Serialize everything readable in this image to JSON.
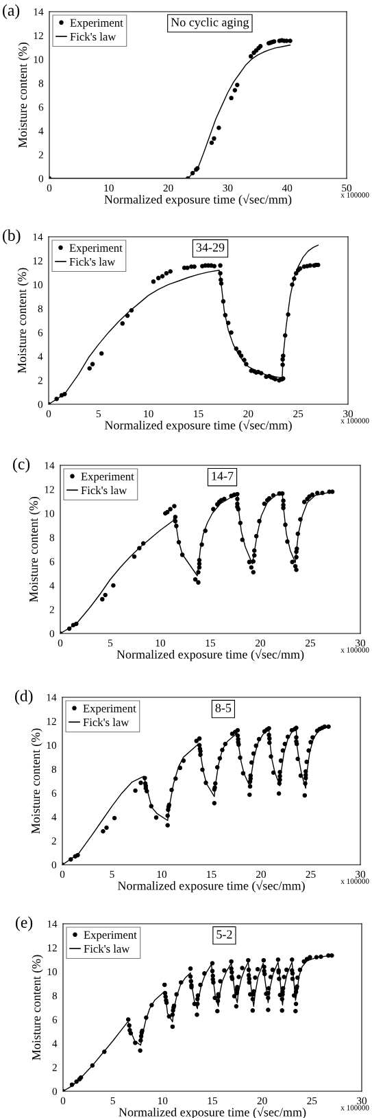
{
  "chart_data": [
    {
      "type": "scatter",
      "title": "(a)",
      "xlabel": "Normalized exposure time (√sec/mm)",
      "ylabel": "Moisture content (%)",
      "annotations": [
        "No cyclic aging",
        "x 100000"
      ],
      "xlim": [
        0,
        50
      ],
      "xticks": [
        0,
        10,
        20,
        30,
        40,
        50
      ],
      "ylim": [
        0,
        14
      ],
      "yticks": [
        0,
        2,
        4,
        6,
        8,
        10,
        12,
        14
      ],
      "grid": false,
      "legend": "top left",
      "series": [
        {
          "name": "Experiment",
          "marker": "circle",
          "color": "#000000",
          "x": [
            0,
            23.3,
            24.1,
            24.7,
            24.9,
            27.3,
            27.7,
            28.5,
            30.6,
            31.2,
            31.6,
            33.9,
            34.4,
            34.8,
            35.2,
            35.5,
            36.9,
            37.2,
            37.5,
            37.8,
            38.7,
            39.1,
            39.5,
            39.9,
            40.5
          ],
          "values": [
            0,
            0,
            0.45,
            0.75,
            0.85,
            3.0,
            3.35,
            4.25,
            6.75,
            7.4,
            7.85,
            10.25,
            10.55,
            10.75,
            10.95,
            11.1,
            11.35,
            11.4,
            11.45,
            11.5,
            11.55,
            11.6,
            11.55,
            11.55,
            11.55
          ]
        },
        {
          "name": "Fick's law",
          "type": "line",
          "marker": "none",
          "color": "#000000",
          "x": [
            0,
            23.3,
            25,
            26,
            27,
            28,
            29,
            30,
            31,
            32,
            33,
            34,
            35,
            36,
            37,
            38,
            39,
            40.5
          ],
          "values": [
            0,
            0,
            0.9,
            2.2,
            3.6,
            5.0,
            6.1,
            7.2,
            8.1,
            8.8,
            9.5,
            10.0,
            10.35,
            10.6,
            10.8,
            10.95,
            11.05,
            11.2
          ]
        }
      ]
    },
    {
      "type": "scatter",
      "title": "(b)",
      "xlabel": "Normalized exposure time (√sec/mm)",
      "ylabel": "Moisture content (%)",
      "annotations": [
        "34-29",
        "x 100000"
      ],
      "xlim": [
        0,
        30
      ],
      "xticks": [
        0,
        5,
        10,
        15,
        20,
        25,
        30
      ],
      "ylim": [
        0,
        14
      ],
      "yticks": [
        0,
        2,
        4,
        6,
        8,
        10,
        12,
        14
      ],
      "grid": false,
      "legend": "top left",
      "series": [
        {
          "name": "Experiment",
          "marker": "circle",
          "color": "#000000",
          "x": [
            0,
            0.8,
            1.3,
            1.6,
            4.1,
            4.4,
            5.3,
            7.4,
            7.9,
            8.3,
            10.5,
            11.0,
            11.4,
            11.8,
            12.2,
            13.6,
            13.9,
            14.3,
            14.6,
            15.4,
            15.7,
            16.0,
            16.3,
            16.6,
            17.2,
            17.2,
            17.25,
            17.3,
            17.5,
            17.7,
            18.0,
            18.3,
            18.8,
            19.1,
            19.3,
            19.6,
            19.8,
            20.3,
            20.6,
            20.8,
            21.0,
            21.3,
            21.8,
            22.1,
            22.3,
            22.5,
            22.7,
            23.1,
            23.3,
            23.4,
            23.5,
            23.45,
            23.45,
            23.5,
            23.7,
            24.0,
            24.4,
            24.6,
            24.8,
            25.0,
            25.2,
            25.6,
            25.9,
            26.2,
            26.6,
            26.8,
            27.0
          ],
          "values": [
            0,
            0.45,
            0.75,
            0.85,
            3.0,
            3.35,
            4.25,
            6.75,
            7.4,
            7.85,
            10.25,
            10.55,
            10.7,
            10.95,
            11.1,
            11.4,
            11.4,
            11.5,
            11.5,
            11.55,
            11.6,
            11.6,
            11.6,
            11.55,
            11.6,
            10.95,
            10.4,
            10.1,
            8.6,
            7.45,
            6.8,
            6.0,
            4.65,
            4.35,
            4.05,
            3.7,
            3.35,
            2.8,
            2.75,
            2.65,
            2.7,
            2.6,
            2.3,
            2.35,
            2.25,
            2.2,
            2.1,
            2.0,
            2.1,
            2.1,
            2.15,
            3.3,
            3.75,
            4.05,
            5.75,
            7.5,
            10.0,
            10.5,
            10.95,
            11.2,
            11.35,
            11.5,
            11.55,
            11.6,
            11.6,
            11.65,
            11.65
          ]
        },
        {
          "name": "Fick's law",
          "type": "line",
          "marker": "none",
          "color": "#000000",
          "x": [
            0,
            1.6,
            3,
            4,
            5,
            6,
            7,
            8,
            9,
            10,
            11,
            12,
            13,
            14,
            15,
            16,
            17.1,
            17.3,
            17.6,
            18,
            18.5,
            19,
            19.5,
            20,
            21,
            22,
            23.4,
            23.5,
            23.8,
            24.2,
            24.6,
            25,
            25.5,
            26,
            26.5,
            27
          ],
          "values": [
            0,
            0.85,
            2.5,
            3.9,
            5.0,
            6.0,
            6.9,
            7.7,
            8.4,
            9.1,
            9.6,
            10.0,
            10.3,
            10.6,
            10.85,
            11.05,
            11.2,
            10.0,
            7.8,
            6.2,
            5.0,
            4.2,
            3.6,
            3.15,
            2.7,
            2.4,
            2.2,
            4.0,
            6.5,
            9.0,
            10.6,
            11.5,
            12.3,
            12.8,
            13.1,
            13.3
          ]
        }
      ]
    },
    {
      "type": "scatter",
      "title": "(c)",
      "xlabel": "Normalized exposure time (√sec/mm)",
      "ylabel": "Moisture content (%)",
      "annotations": [
        "14-7",
        "x 100000"
      ],
      "xlim": [
        0,
        30
      ],
      "xticks": [
        0,
        5,
        10,
        15,
        20,
        25,
        30
      ],
      "ylim": [
        0,
        14
      ],
      "yticks": [
        0,
        2,
        4,
        6,
        8,
        10,
        12,
        14
      ],
      "grid": false,
      "legend": "top left",
      "series": [
        {
          "name": "Experiment",
          "marker": "circle",
          "color": "#000000",
          "x": [
            0,
            0.9,
            1.3,
            1.6,
            4.2,
            4.5,
            5.3,
            7.4,
            7.9,
            8.3,
            10.5,
            10.7,
            11.0,
            11.4,
            11.5,
            11.5,
            11.6,
            11.85,
            12.2,
            13.5,
            13.8,
            13.8,
            13.9,
            13.9,
            13.9,
            14.15,
            14.5,
            15.3,
            15.7,
            15.9,
            16.1,
            16.4,
            17.1,
            17.4,
            17.7,
            17.7,
            17.7,
            17.7,
            17.8,
            18.0,
            18.2,
            18.9,
            19.1,
            19.3,
            19.3,
            19.4,
            19.4,
            19.6,
            19.9,
            20.4,
            20.7,
            20.9,
            21.3,
            21.9,
            22.2,
            22.3,
            22.3,
            22.3,
            22.5,
            22.7,
            23.2,
            23.5,
            23.6,
            23.6,
            23.6,
            23.65,
            23.75,
            24.0,
            24.4,
            24.7,
            24.9,
            25.2,
            25.7,
            26.2,
            26.9,
            27.2
          ],
          "values": [
            0,
            0.4,
            0.7,
            0.8,
            2.85,
            3.2,
            4.0,
            6.4,
            7.1,
            7.5,
            10.0,
            10.1,
            10.35,
            10.6,
            9.7,
            9.35,
            8.95,
            7.6,
            6.55,
            4.5,
            4.25,
            5.1,
            5.5,
            5.8,
            6.1,
            7.4,
            8.55,
            10.35,
            10.75,
            10.95,
            11.1,
            11.2,
            11.45,
            11.55,
            11.6,
            11.2,
            10.8,
            10.55,
            10.35,
            9.2,
            7.8,
            5.95,
            5.5,
            5.1,
            6.0,
            6.5,
            6.9,
            8.1,
            9.35,
            10.8,
            11.1,
            11.25,
            11.5,
            11.65,
            11.65,
            11.05,
            10.7,
            10.45,
            9.05,
            7.65,
            5.95,
            5.6,
            5.3,
            6.35,
            6.8,
            7.05,
            8.3,
            9.5,
            10.95,
            11.2,
            11.4,
            11.55,
            11.7,
            11.7,
            11.8,
            11.8
          ]
        },
        {
          "name": "Fick's law",
          "type": "line",
          "marker": "none",
          "color": "#000000",
          "x": [
            0,
            1.6,
            3,
            4,
            5,
            6,
            7,
            8,
            9,
            10,
            11.3,
            11.4,
            11.6,
            11.8,
            12.2,
            13.7,
            13.8,
            14.0,
            14.3,
            14.7,
            15.2,
            16,
            17,
            17.7,
            17.8,
            18.1,
            18.5,
            19.2,
            19.4,
            19.7,
            20.1,
            20.7,
            21.5,
            22.2,
            22.3,
            22.6,
            23.0,
            23.5,
            23.6,
            23.8,
            24.2,
            24.7,
            25.5,
            27.2
          ],
          "values": [
            0,
            0.8,
            2.2,
            3.3,
            4.5,
            5.5,
            6.4,
            7.2,
            7.9,
            8.6,
            9.4,
            9.8,
            8.9,
            7.8,
            6.6,
            4.8,
            5.5,
            7.0,
            8.3,
            9.2,
            10.0,
            10.8,
            11.3,
            11.5,
            10.5,
            8.5,
            7.2,
            5.8,
            6.8,
            8.3,
            9.8,
            10.9,
            11.5,
            11.6,
            10.6,
            8.3,
            6.9,
            5.9,
            6.8,
            8.3,
            9.8,
            10.9,
            11.5,
            11.8
          ]
        }
      ]
    },
    {
      "type": "scatter",
      "title": "(d)",
      "xlabel": "Normalized exposure time (√sec/mm)",
      "ylabel": "Moisture content (%)",
      "annotations": [
        "8-5",
        "x 100000"
      ],
      "xlim": [
        0,
        30
      ],
      "xticks": [
        0,
        5,
        10,
        15,
        20,
        25,
        30
      ],
      "ylim": [
        0,
        14
      ],
      "yticks": [
        0,
        2,
        4,
        6,
        8,
        10,
        12,
        14
      ],
      "grid": false,
      "legend": "top left",
      "series": [
        {
          "name": "Experiment",
          "marker": "circle",
          "color": "#000000",
          "x": [
            0,
            0.85,
            1.3,
            1.55,
            4.1,
            4.45,
            5.25,
            7.35,
            7.9,
            8.3,
            8.35,
            8.4,
            8.4,
            8.5,
            8.95,
            9.45,
            10.6,
            10.6,
            10.65,
            10.7,
            10.75,
            11.0,
            11.4,
            11.85,
            12.2,
            13.5,
            13.8,
            13.8,
            13.85,
            13.9,
            13.9,
            14.1,
            14.45,
            15.3,
            15.3,
            15.35,
            15.4,
            15.6,
            15.85,
            16.1,
            16.4,
            17.1,
            17.4,
            17.65,
            17.65,
            17.7,
            17.7,
            17.75,
            17.9,
            18.2,
            18.85,
            18.9,
            18.9,
            18.95,
            18.95,
            19.05,
            19.25,
            19.5,
            19.8,
            20.35,
            20.6,
            20.8,
            20.8,
            20.85,
            20.85,
            21.0,
            21.25,
            21.8,
            21.85,
            21.9,
            21.9,
            21.9,
            22.0,
            22.2,
            22.4,
            22.7,
            23.1,
            23.4,
            23.55,
            23.55,
            23.55,
            23.6,
            23.7,
            24.0,
            24.4,
            24.45,
            24.5,
            24.5,
            24.5,
            24.6,
            24.8,
            25.0,
            25.2,
            25.65,
            25.9,
            26.15,
            26.4,
            26.8
          ],
          "values": [
            0,
            0.45,
            0.7,
            0.8,
            2.8,
            3.1,
            3.9,
            6.2,
            6.85,
            7.25,
            6.8,
            6.6,
            6.4,
            6.15,
            4.9,
            3.95,
            3.3,
            4.1,
            4.6,
            4.85,
            5.0,
            6.25,
            7.2,
            8.1,
            8.7,
            10.35,
            10.55,
            10.0,
            9.7,
            9.5,
            9.2,
            7.95,
            6.85,
            5.15,
            6.3,
            6.45,
            6.8,
            8.15,
            8.9,
            9.6,
            10.1,
            10.95,
            11.1,
            11.25,
            10.8,
            10.5,
            10.25,
            10.05,
            8.95,
            7.65,
            5.85,
            6.55,
            6.95,
            7.2,
            7.45,
            8.55,
            9.3,
            9.95,
            10.5,
            11.15,
            11.3,
            11.4,
            10.85,
            10.55,
            10.2,
            9.05,
            7.7,
            5.95,
            6.8,
            7.1,
            7.4,
            7.75,
            8.7,
            9.55,
            10.1,
            10.7,
            11.25,
            11.35,
            11.45,
            10.65,
            10.3,
            10.1,
            8.85,
            7.45,
            5.8,
            6.8,
            7.25,
            7.5,
            7.8,
            8.6,
            9.55,
            10.25,
            10.65,
            11.2,
            11.35,
            11.45,
            11.55,
            11.55
          ]
        },
        {
          "name": "Fick's law",
          "type": "line",
          "marker": "none",
          "color": "#000000",
          "x": [
            0,
            1.6,
            3,
            4,
            5,
            6,
            7,
            8.2,
            8.5,
            9,
            9.5,
            10.6,
            10.8,
            11.2,
            11.7,
            12.2,
            13.7,
            13.9,
            14.2,
            14.5,
            15.3,
            15.4,
            15.7,
            16.1,
            16.6,
            17.6,
            17.7,
            18.0,
            18.3,
            18.9,
            19.0,
            19.3,
            19.7,
            20.2,
            20.8,
            20.9,
            21.1,
            21.4,
            21.9,
            22.0,
            22.3,
            22.7,
            23.1,
            23.55,
            23.6,
            23.8,
            24.1,
            24.5,
            24.6,
            24.9,
            25.3,
            25.8,
            26.8
          ],
          "values": [
            0,
            0.9,
            2.5,
            3.7,
            4.9,
            6.0,
            6.9,
            7.4,
            6.4,
            4.8,
            4.3,
            3.7,
            5.0,
            6.8,
            8.2,
            9.0,
            10.1,
            9.3,
            7.8,
            6.8,
            5.7,
            6.6,
            8.3,
            9.6,
            10.3,
            11.0,
            10.2,
            8.6,
            7.6,
            6.5,
            7.4,
            9.0,
            10.2,
            10.9,
            11.3,
            10.2,
            8.8,
            7.7,
            6.6,
            7.6,
            9.3,
            10.5,
            11.1,
            11.3,
            10.1,
            8.9,
            7.5,
            6.4,
            7.6,
            9.4,
            10.6,
            11.2,
            11.55
          ]
        }
      ]
    },
    {
      "type": "scatter",
      "title": "(e)",
      "xlabel": "Normalized exposure time (√sec/mm)",
      "ylabel": "Moisture content (%)",
      "annotations": [
        "5-2",
        "x 100000"
      ],
      "xlim": [
        0,
        30
      ],
      "xticks": [
        0,
        5,
        10,
        15,
        20,
        25,
        30
      ],
      "ylim": [
        0,
        14
      ],
      "yticks": [
        0,
        2,
        4,
        6,
        8,
        10,
        12,
        14
      ],
      "grid": false,
      "legend": "top left",
      "series": [
        {
          "name": "Experiment",
          "marker": "circle",
          "color": "#000000",
          "x": [
            0,
            0.9,
            1.35,
            1.65,
            1.8,
            2.95,
            4.15,
            6.55,
            6.65,
            6.7,
            6.8,
            7.25,
            7.75,
            7.8,
            7.85,
            7.9,
            7.95,
            8.35,
            8.9,
            10.2,
            10.25,
            10.3,
            10.35,
            10.4,
            10.65,
            11.0,
            11.0,
            11.05,
            11.1,
            11.15,
            11.4,
            11.85,
            12.8,
            12.8,
            12.85,
            12.9,
            12.9,
            13.2,
            13.45,
            13.5,
            13.5,
            13.55,
            13.8,
            14.2,
            15.0,
            15.0,
            15.05,
            15.05,
            15.1,
            15.25,
            15.5,
            15.55,
            15.6,
            15.6,
            15.8,
            16.2,
            16.9,
            16.9,
            16.95,
            16.95,
            17.0,
            17.2,
            17.4,
            17.45,
            17.45,
            17.5,
            17.65,
            18.0,
            18.6,
            18.65,
            18.65,
            18.7,
            18.7,
            18.8,
            19.05,
            19.05,
            19.1,
            19.15,
            19.3,
            19.55,
            20.15,
            20.2,
            20.2,
            20.25,
            20.4,
            20.6,
            20.6,
            20.6,
            20.65,
            20.85,
            21.05,
            21.6,
            21.65,
            21.65,
            21.7,
            21.8,
            22.0,
            22.0,
            22.05,
            22.05,
            22.1,
            22.2,
            22.45,
            23.0,
            23.0,
            23.05,
            23.05,
            23.2,
            23.35,
            23.4,
            23.4,
            23.45,
            23.5,
            23.55,
            23.8,
            24.2,
            24.5,
            24.8,
            25.45,
            25.9,
            26.65,
            27.0
          ],
          "values": [
            0,
            0.55,
            0.8,
            1.0,
            1.15,
            2.15,
            3.3,
            6.0,
            5.5,
            5.1,
            4.85,
            4.05,
            3.4,
            4.25,
            4.6,
            4.9,
            5.05,
            6.15,
            7.2,
            8.9,
            8.2,
            7.9,
            7.6,
            7.4,
            6.25,
            5.4,
            6.4,
            6.75,
            7.0,
            7.15,
            8.1,
            9.1,
            10.25,
            9.6,
            9.2,
            8.85,
            8.7,
            7.3,
            6.4,
            7.3,
            7.7,
            8.0,
            8.9,
            9.85,
            10.7,
            10.05,
            9.65,
            9.35,
            9.1,
            7.8,
            6.7,
            7.55,
            7.9,
            8.1,
            9.2,
            10.1,
            10.85,
            10.25,
            9.95,
            9.55,
            9.4,
            7.95,
            7.1,
            8.2,
            8.5,
            8.7,
            9.55,
            10.3,
            10.95,
            10.15,
            9.7,
            9.4,
            9.1,
            8.1,
            6.75,
            7.7,
            8.1,
            8.35,
            9.5,
            10.2,
            10.95,
            10.4,
            10.05,
            9.8,
            8.15,
            6.8,
            7.8,
            8.2,
            8.6,
            9.55,
            10.15,
            11.0,
            10.1,
            9.95,
            9.4,
            8.05,
            6.75,
            7.7,
            8.1,
            8.3,
            8.6,
            9.55,
            10.15,
            11.0,
            10.1,
            9.85,
            9.4,
            8.0,
            6.7,
            7.3,
            8.3,
            8.6,
            8.75,
            9.5,
            10.15,
            10.85,
            11.05,
            11.2,
            11.2,
            11.25,
            11.35,
            11.35
          ]
        },
        {
          "name": "Fick's law",
          "type": "line",
          "marker": "none",
          "color": "#000000",
          "x": [
            0,
            1,
            2,
            3,
            4,
            5,
            6.5,
            6.6,
            6.8,
            7.2,
            7.8,
            8.0,
            8.3,
            8.7,
            9.2,
            10.2,
            10.3,
            10.5,
            11.0,
            11.1,
            11.4,
            11.8,
            12.3,
            12.8,
            13.0,
            13.2,
            13.5,
            13.6,
            13.9,
            14.3,
            14.9,
            15.1,
            15.3,
            15.6,
            15.7,
            16.0,
            16.4,
            16.9,
            17.1,
            17.3,
            17.5,
            17.6,
            17.9,
            18.2,
            18.6,
            18.8,
            19.0,
            19.15,
            19.3,
            19.6,
            20.1,
            20.3,
            20.5,
            20.6,
            20.8,
            21.1,
            21.6,
            21.8,
            21.95,
            22.05,
            22.2,
            22.5,
            23.0,
            23.2,
            23.35,
            23.5,
            23.7,
            24.0,
            24.5,
            25.5,
            27
          ],
          "values": [
            0,
            0.5,
            1.3,
            2.2,
            3.2,
            4.2,
            5.8,
            5.7,
            5.0,
            4.2,
            3.85,
            4.8,
            5.9,
            6.9,
            7.6,
            8.35,
            7.8,
            6.5,
            5.8,
            6.7,
            7.9,
            8.9,
            9.5,
            9.9,
            8.5,
            7.5,
            6.9,
            7.7,
            8.9,
            9.8,
            10.6,
            9.2,
            7.9,
            7.1,
            8.0,
            9.2,
            10.0,
            10.7,
            9.3,
            8.0,
            7.4,
            8.2,
            9.4,
            10.1,
            10.8,
            9.3,
            7.9,
            7.1,
            8.2,
            9.6,
            10.7,
            9.2,
            8.0,
            7.4,
            8.7,
            9.8,
            10.8,
            9.3,
            7.9,
            7.2,
            8.6,
            9.8,
            10.8,
            9.0,
            7.6,
            8.3,
            9.6,
            10.4,
            10.9,
            11.2,
            11.35
          ]
        }
      ]
    }
  ]
}
